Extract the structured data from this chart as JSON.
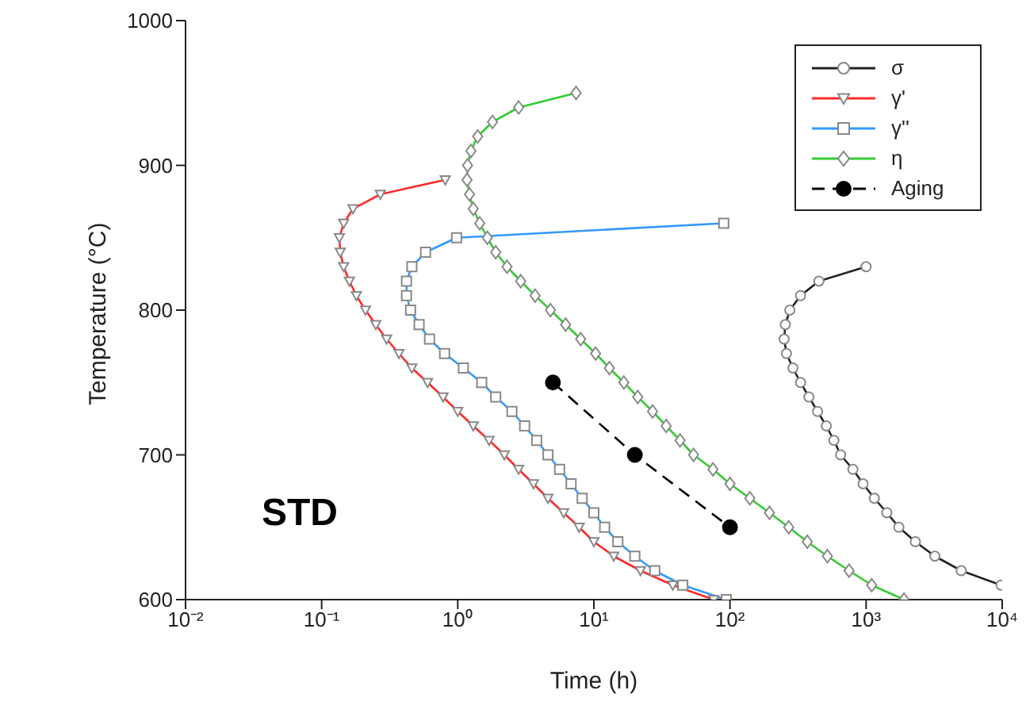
{
  "chart_data": {
    "type": "line",
    "xlabel": "Time (h)",
    "ylabel": "Temperature (°C)",
    "log": "x",
    "grid": false,
    "legend": "top right",
    "xlim": [
      0.01,
      10000
    ],
    "xticks": [
      {
        "value": 0.01,
        "label": "10⁻²"
      },
      {
        "value": 0.1,
        "label": "10⁻¹"
      },
      {
        "value": 1,
        "label": "10⁰"
      },
      {
        "value": 10,
        "label": "10¹"
      },
      {
        "value": 100,
        "label": "10²"
      },
      {
        "value": 1000,
        "label": "10³"
      },
      {
        "value": 10000,
        "label": "10⁴"
      }
    ],
    "ylim": [
      600,
      1000
    ],
    "yticks": [
      600,
      700,
      800,
      900,
      1000
    ],
    "annotations": [
      "STD"
    ],
    "series": [
      {
        "name": "σ",
        "color": "#222222",
        "marker": "circle",
        "line_style": "solid",
        "x": [
          1000,
          450,
          330,
          275,
          255,
          250,
          260,
          290,
          330,
          380,
          440,
          510,
          580,
          650,
          800,
          950,
          1150,
          1420,
          1740,
          2300,
          3200,
          5000,
          9800
        ],
        "values": [
          830,
          820,
          810,
          800,
          790,
          780,
          770,
          760,
          750,
          740,
          730,
          720,
          710,
          700,
          690,
          680,
          670,
          660,
          650,
          640,
          630,
          620,
          610
        ]
      },
      {
        "name": "γ'",
        "color": "#ff2a2a",
        "marker": "triangle",
        "line_style": "solid",
        "x": [
          0.81,
          0.27,
          0.17,
          0.145,
          0.135,
          0.137,
          0.145,
          0.16,
          0.18,
          0.21,
          0.25,
          0.3,
          0.37,
          0.46,
          0.6,
          0.78,
          1.0,
          1.3,
          1.7,
          2.2,
          2.8,
          3.6,
          4.6,
          6.0,
          7.8,
          10,
          14,
          22,
          38,
          76
        ],
        "values": [
          890,
          880,
          870,
          860,
          850,
          840,
          830,
          820,
          810,
          800,
          790,
          780,
          770,
          760,
          750,
          740,
          730,
          720,
          710,
          700,
          690,
          680,
          670,
          660,
          650,
          640,
          630,
          620,
          610,
          600
        ]
      },
      {
        "name": "γ''",
        "color": "#3399ff",
        "marker": "square",
        "line_style": "solid",
        "x": [
          90,
          0.98,
          0.58,
          0.46,
          0.42,
          0.42,
          0.45,
          0.52,
          0.62,
          0.8,
          1.1,
          1.5,
          1.9,
          2.5,
          3.1,
          3.8,
          4.6,
          5.6,
          6.8,
          8.2,
          10,
          12,
          15,
          20,
          28,
          45,
          94
        ],
        "values": [
          860,
          850,
          840,
          830,
          820,
          810,
          800,
          790,
          780,
          770,
          760,
          750,
          740,
          730,
          720,
          710,
          700,
          690,
          680,
          670,
          660,
          650,
          640,
          630,
          620,
          610,
          600
        ]
      },
      {
        "name": "η",
        "color": "#33cc33",
        "marker": "diamond",
        "line_style": "solid",
        "x": [
          7.4,
          2.8,
          1.8,
          1.4,
          1.25,
          1.18,
          1.17,
          1.22,
          1.3,
          1.45,
          1.65,
          1.9,
          2.3,
          2.9,
          3.7,
          4.8,
          6.2,
          8,
          10.3,
          13,
          16.6,
          21,
          27,
          34,
          43,
          54,
          75,
          100,
          140,
          195,
          270,
          370,
          520,
          750,
          1100,
          1900
        ],
        "values": [
          950,
          940,
          930,
          920,
          910,
          900,
          890,
          880,
          870,
          860,
          850,
          840,
          830,
          820,
          810,
          800,
          790,
          780,
          770,
          760,
          750,
          740,
          730,
          720,
          710,
          700,
          690,
          680,
          670,
          660,
          650,
          640,
          630,
          620,
          610,
          600
        ]
      },
      {
        "name": "Aging",
        "color": "#000000",
        "marker": "circle",
        "line_style": "dashed",
        "x": [
          5,
          20,
          100
        ],
        "values": [
          750,
          700,
          650
        ]
      }
    ]
  }
}
